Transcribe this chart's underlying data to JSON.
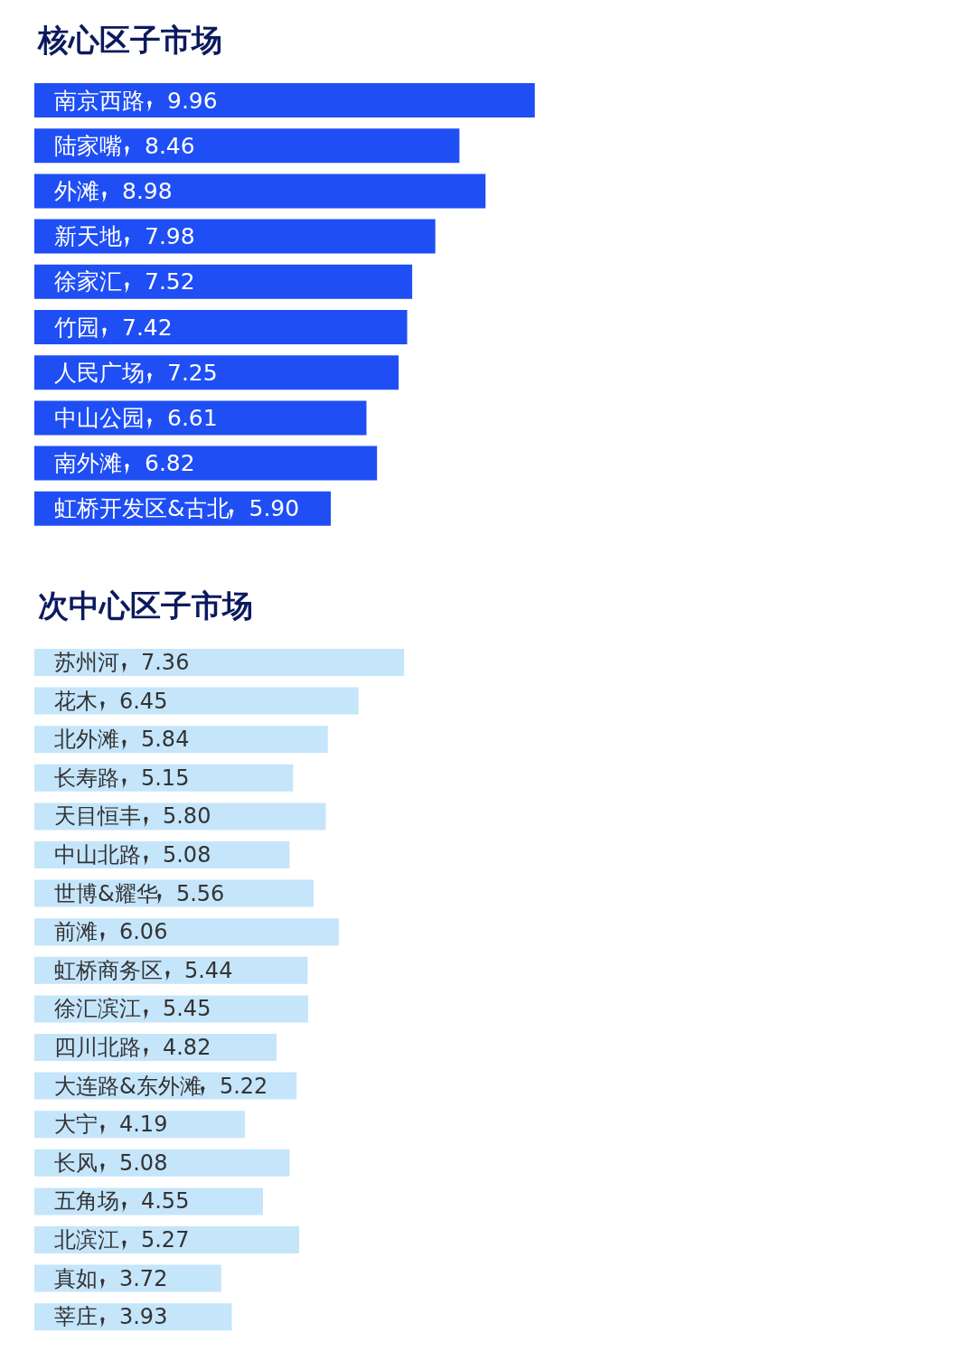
{
  "chart_data": [
    {
      "type": "bar",
      "orientation": "horizontal",
      "title": "核心区子市场",
      "color": "#1f4ef5",
      "categories": [
        "南京西路",
        "陆家嘴",
        "外滩",
        "新天地",
        "徐家汇",
        "竹园",
        "人民广场",
        "中山公园",
        "南外滩",
        "虹桥开发区&古北"
      ],
      "values": [
        9.96,
        8.46,
        8.98,
        7.98,
        7.52,
        7.42,
        7.25,
        6.61,
        6.82,
        5.9
      ],
      "value_labels": [
        "9.96",
        "8.46",
        "8.98",
        "7.98",
        "7.52",
        "7.42",
        "7.25",
        "6.61",
        "6.82",
        "5.90"
      ]
    },
    {
      "type": "bar",
      "orientation": "horizontal",
      "title": "次中心区子市场",
      "color": "#c5e5fb",
      "categories": [
        "苏州河",
        "花木",
        "北外滩",
        "长寿路",
        "天目恒丰",
        "中山北路",
        "世博&耀华",
        "前滩",
        "虹桥商务区",
        "徐汇滨江",
        "四川北路",
        "大连路&东外滩",
        "大宁",
        "长风",
        "五角场",
        "北滨江",
        "真如",
        "莘庄"
      ],
      "values": [
        7.36,
        6.45,
        5.84,
        5.15,
        5.8,
        5.08,
        5.56,
        6.06,
        5.44,
        5.45,
        4.82,
        5.22,
        4.19,
        5.08,
        4.55,
        5.27,
        3.72,
        3.93
      ],
      "value_labels": [
        "7.36",
        "6.45",
        "5.84",
        "5.15",
        "5.80",
        "5.08",
        "5.56",
        "6.06",
        "5.44",
        "5.45",
        "4.82",
        "5.22",
        "4.19",
        "5.08",
        "4.55",
        "5.27",
        "3.72",
        "3.93"
      ]
    }
  ]
}
